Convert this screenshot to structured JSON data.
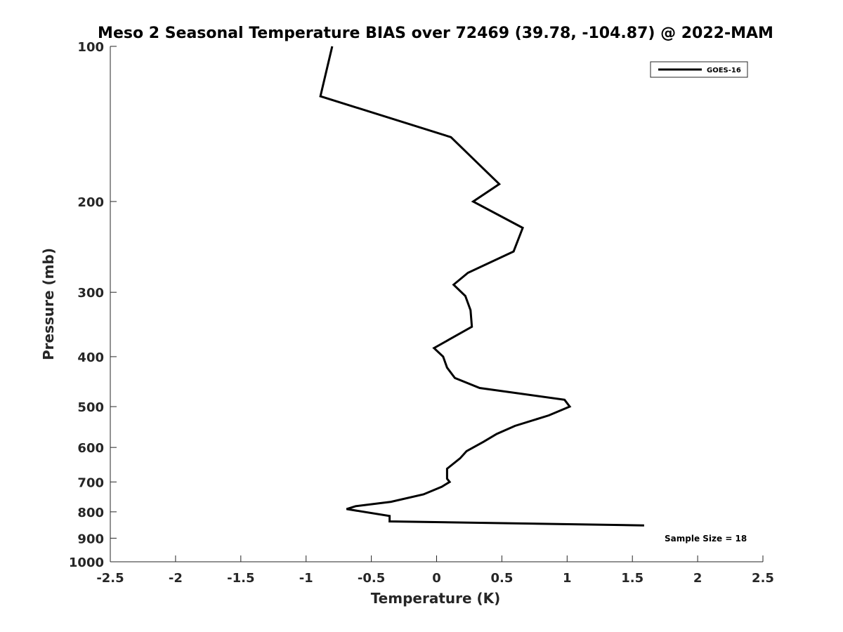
{
  "chart_data": {
    "type": "line",
    "title": "Meso 2 Seasonal Temperature BIAS over 72469 (39.78, -104.87) @ 2022-MAM",
    "xlabel": "Temperature (K)",
    "ylabel": "Pressure (mb)",
    "xlim": [
      -2.5,
      2.5
    ],
    "ylim": [
      1000,
      100
    ],
    "y_scale": "log",
    "y_reversed": true,
    "grid": false,
    "legend_position": "top-right",
    "x_ticks": [
      -2.5,
      -2,
      -1.5,
      -1,
      -0.5,
      0,
      0.5,
      1,
      1.5,
      2,
      2.5
    ],
    "x_tick_labels": [
      "-2.5",
      "-2",
      "-1.5",
      "-1",
      "-0.5",
      "0",
      "0.5",
      "1",
      "1.5",
      "2",
      "2.5"
    ],
    "y_ticks": [
      100,
      200,
      300,
      400,
      500,
      600,
      700,
      800,
      900,
      1000
    ],
    "y_tick_labels": [
      "100",
      "200",
      "300",
      "400",
      "500",
      "600",
      "700",
      "800",
      "900",
      "1000"
    ],
    "series": [
      {
        "name": "GOES-16",
        "color": "#000000",
        "points": [
          [
            -0.8,
            100
          ],
          [
            -0.89,
            125
          ],
          [
            0.11,
            150
          ],
          [
            0.33,
            170
          ],
          [
            0.48,
            185
          ],
          [
            0.28,
            200
          ],
          [
            0.66,
            225
          ],
          [
            0.59,
            250
          ],
          [
            0.24,
            275
          ],
          [
            0.13,
            290
          ],
          [
            0.22,
            305
          ],
          [
            0.26,
            325
          ],
          [
            0.27,
            350
          ],
          [
            0.1,
            370
          ],
          [
            -0.02,
            385
          ],
          [
            0.05,
            400
          ],
          [
            0.08,
            420
          ],
          [
            0.14,
            440
          ],
          [
            0.33,
            460
          ],
          [
            0.98,
            485
          ],
          [
            1.02,
            500
          ],
          [
            0.86,
            520
          ],
          [
            0.6,
            545
          ],
          [
            0.46,
            565
          ],
          [
            0.36,
            585
          ],
          [
            0.23,
            610
          ],
          [
            0.18,
            630
          ],
          [
            0.08,
            660
          ],
          [
            0.08,
            690
          ],
          [
            0.1,
            700
          ],
          [
            0.04,
            715
          ],
          [
            -0.1,
            740
          ],
          [
            -0.35,
            765
          ],
          [
            -0.62,
            780
          ],
          [
            -0.69,
            790
          ],
          [
            -0.36,
            815
          ],
          [
            -0.36,
            835
          ],
          [
            1.59,
            850
          ]
        ]
      }
    ],
    "annotation": "Sample Size = 18"
  }
}
